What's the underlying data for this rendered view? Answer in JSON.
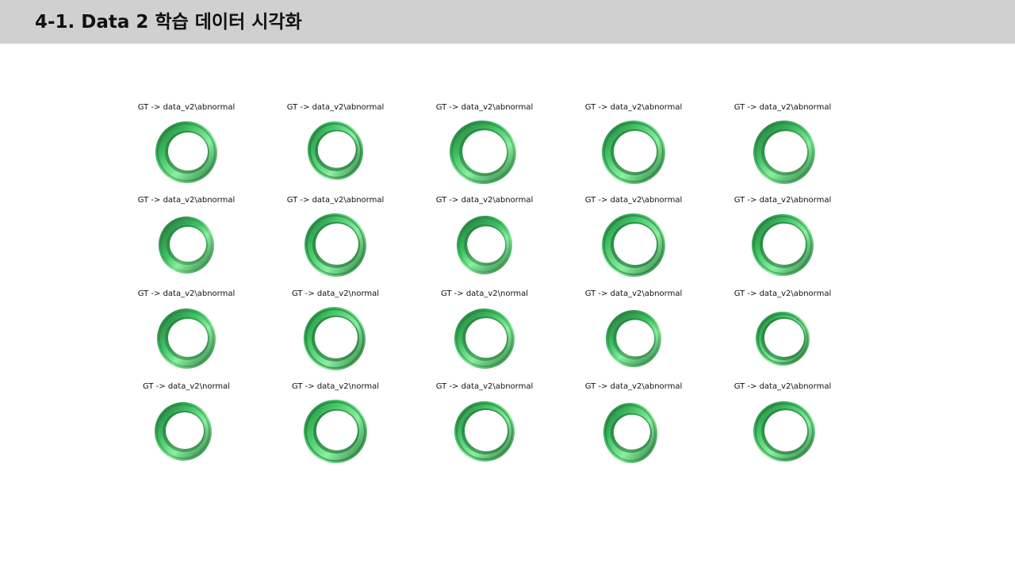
{
  "slide": {
    "title": "4-1. Data 2 학습 데이터 시각화"
  },
  "colors": {
    "header_bg": "#d0d0d0",
    "ring_dark": "#1f6b32",
    "ring_light": "#8af0a0",
    "ring_mid": "#3fbf63"
  },
  "grid": {
    "rows": [
      {
        "captions": [
          "GT -> data_v2\\abnormal",
          "GT -> data_v2\\abnormal",
          "GT -> data_v2\\abnormal",
          "GT -> data_v2\\abnormal",
          "GT -> data_v2\\abnormal"
        ]
      },
      {
        "captions": [
          "GT -> data_v2\\abnormal",
          "GT -> data_v2\\abnormal",
          "GT -> data_v2\\abnormal",
          "GT -> data_v2\\abnormal",
          "GT -> data_v2\\abnormal"
        ]
      },
      {
        "captions": [
          "GT -> data_v2\\abnormal",
          "GT -> data_v2\\normal",
          "GT -> data_v2\\normal",
          "GT -> data_v2\\abnormal",
          "GT -> data_v2\\abnormal"
        ]
      },
      {
        "captions": [
          "GT -> data_v2\\normal",
          "GT -> data_v2\\normal",
          "GT -> data_v2\\abnormal",
          "GT -> data_v2\\abnormal",
          "GT -> data_v2\\abnormal"
        ]
      }
    ]
  }
}
